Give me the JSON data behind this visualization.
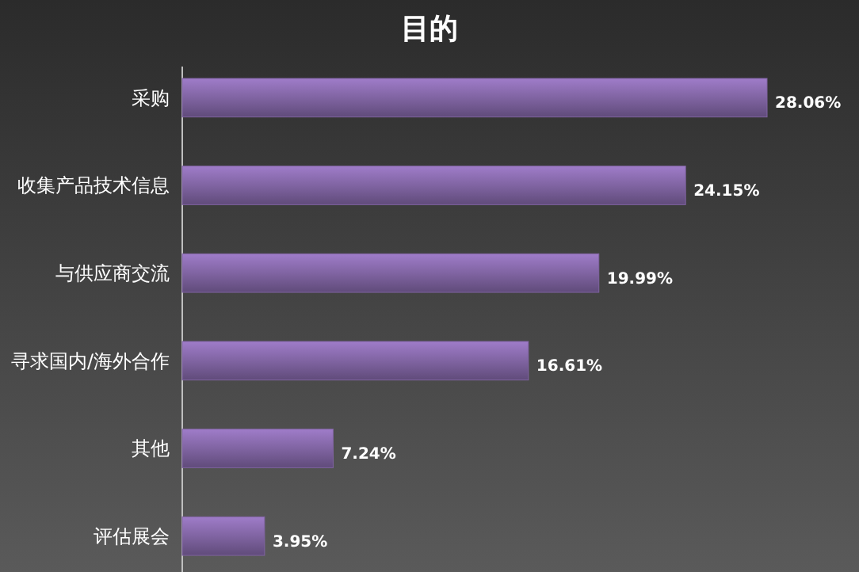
{
  "chart_data": {
    "type": "bar",
    "orientation": "horizontal",
    "title": "目的",
    "categories": [
      "采购",
      "收集产品技术信息",
      "与供应商交流",
      "寻求国内/海外合作",
      "其他",
      "评估展会"
    ],
    "values": [
      28.06,
      24.15,
      19.99,
      16.61,
      7.24,
      3.95
    ],
    "value_labels": [
      "28.06%",
      "24.15%",
      "19.99%",
      "16.61%",
      "7.24%",
      "3.95%"
    ],
    "color": "#8064a2"
  }
}
